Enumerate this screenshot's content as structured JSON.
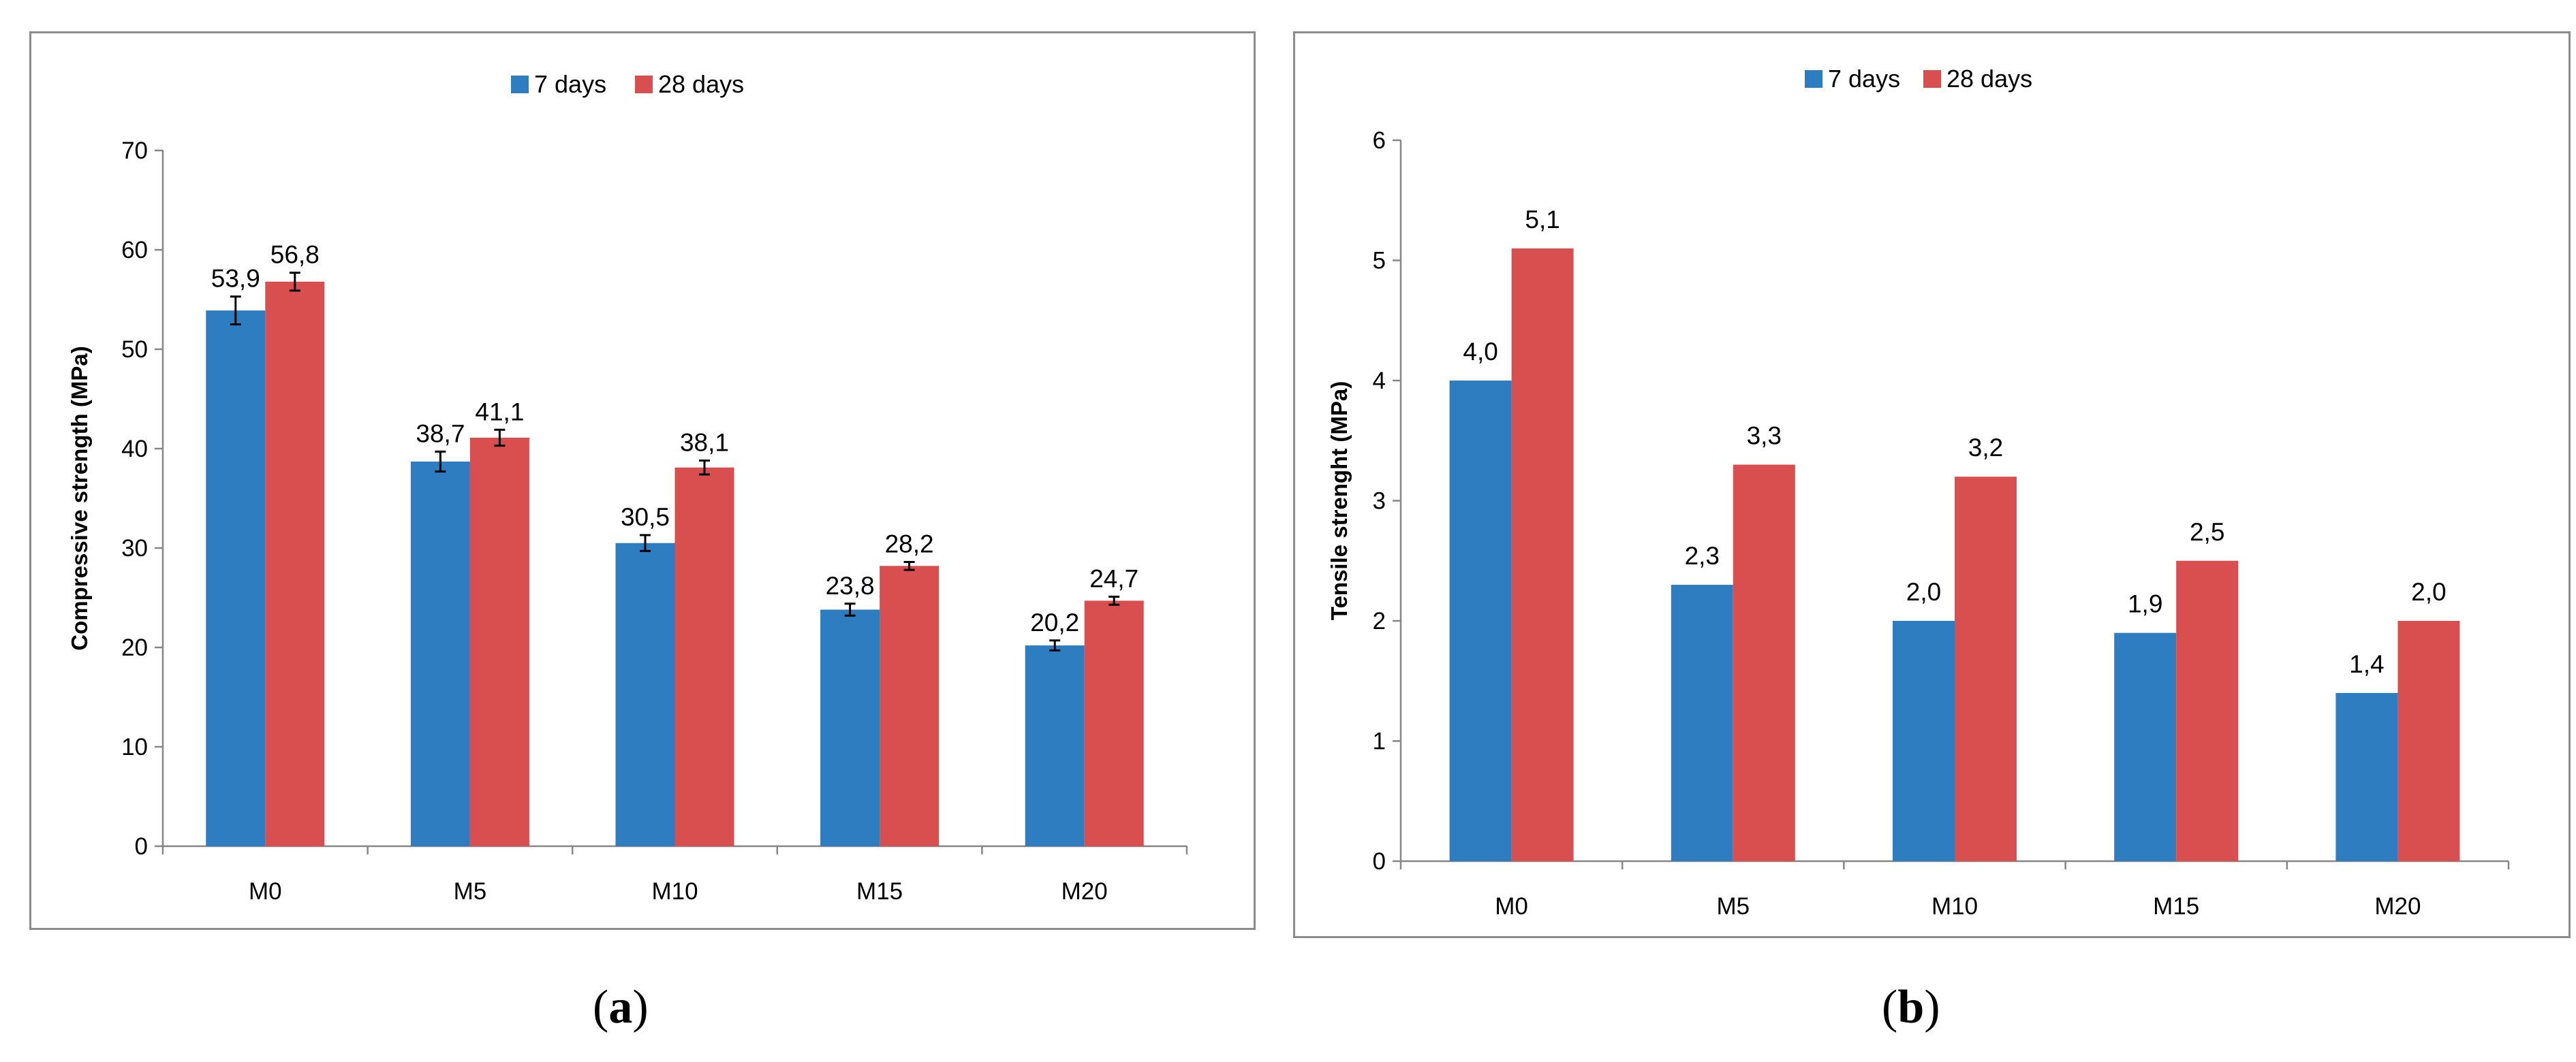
{
  "captions": {
    "a": "a",
    "b": "b"
  },
  "chart_data": [
    {
      "type": "bar",
      "title": "",
      "xlabel": "",
      "ylabel": "Compressive strength (MPa)",
      "ylim": [
        0,
        70
      ],
      "yticks": [
        0,
        10,
        20,
        30,
        40,
        50,
        60,
        70
      ],
      "categories": [
        "M0",
        "M5",
        "M10",
        "M15",
        "M20"
      ],
      "legend_position": "top-center",
      "error_bars": true,
      "series": [
        {
          "name": "7 days",
          "color": "#2e7dc0",
          "values": [
            53.9,
            38.7,
            30.5,
            23.8,
            20.2
          ],
          "labels": [
            "53,9",
            "38,7",
            "30,5",
            "23,8",
            "20,2"
          ],
          "errors": [
            1.4,
            1.0,
            0.8,
            0.6,
            0.5
          ]
        },
        {
          "name": "28 days",
          "color": "#d94f4f",
          "values": [
            56.8,
            41.1,
            38.1,
            28.2,
            24.7
          ],
          "labels": [
            "56,8",
            "41,1",
            "38,1",
            "28,2",
            "24,7"
          ],
          "errors": [
            0.9,
            0.8,
            0.7,
            0.4,
            0.4
          ]
        }
      ]
    },
    {
      "type": "bar",
      "title": "",
      "xlabel": "",
      "ylabel": "Tensile strenght (MPa)",
      "ylim": [
        0,
        6
      ],
      "yticks": [
        0,
        1,
        2,
        3,
        4,
        5,
        6
      ],
      "categories": [
        "M0",
        "M5",
        "M10",
        "M15",
        "M20"
      ],
      "legend_position": "top-center",
      "error_bars": false,
      "series": [
        {
          "name": "7 days",
          "color": "#2e7dc0",
          "values": [
            4.0,
            2.3,
            2.0,
            1.9,
            1.4
          ],
          "labels": [
            "4,0",
            "2,3",
            "2,0",
            "1,9",
            "1,4"
          ]
        },
        {
          "name": "28 days",
          "color": "#d94f4f",
          "values": [
            5.1,
            3.3,
            3.2,
            2.5,
            2.0
          ],
          "labels": [
            "5,1",
            "3,3",
            "3,2",
            "2,5",
            "2,0"
          ]
        }
      ]
    }
  ]
}
